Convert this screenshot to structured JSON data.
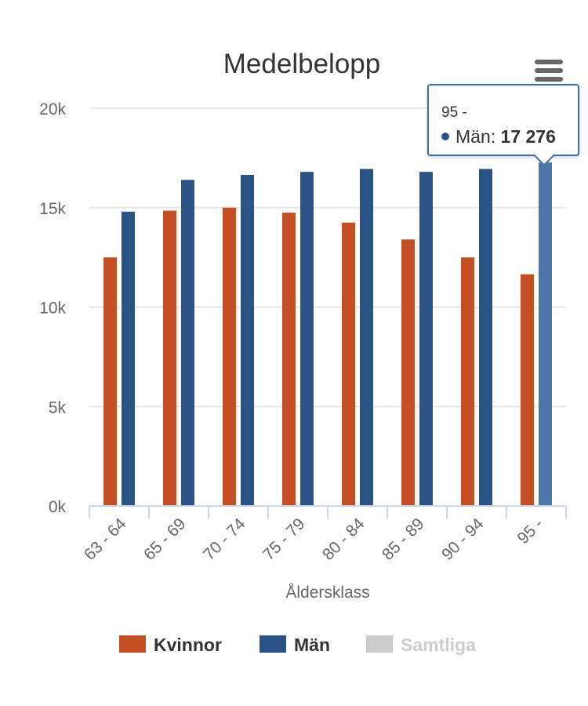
{
  "chart_data": {
    "type": "bar",
    "title": "Medelbelopp",
    "xlabel": "Åldersklass",
    "ylabel": "",
    "ylim": [
      0,
      20000
    ],
    "ytick_values": [
      0,
      5000,
      10000,
      15000,
      20000
    ],
    "ytick_labels": [
      "0k",
      "5k",
      "10k",
      "15k",
      "20k"
    ],
    "categories": [
      "63 - 64",
      "65 - 69",
      "70 - 74",
      "75 - 79",
      "80 - 84",
      "85 - 89",
      "90 - 94",
      "95 -"
    ],
    "series": [
      {
        "name": "Kvinnor",
        "color": "#c25024",
        "values": [
          12500,
          14850,
          15000,
          14750,
          14250,
          13400,
          12500,
          11650
        ]
      },
      {
        "name": "Män",
        "color": "#2a5485",
        "values": [
          14800,
          16400,
          16650,
          16800,
          16950,
          16800,
          16950,
          17276
        ]
      }
    ],
    "hidden_series": [
      {
        "name": "Samtliga",
        "color": "#cccccc",
        "visible": false
      }
    ],
    "grid": true,
    "legend_position": "bottom-center",
    "highlighted": {
      "series": "Män",
      "category": "95 -",
      "color": "#4a77a8"
    }
  },
  "tooltip": {
    "header": "95 -",
    "series_name": "Män",
    "separator": ": ",
    "value": "17 276",
    "color": "#2a5485"
  },
  "legend": {
    "items": [
      {
        "label": "Kvinnor",
        "color": "#c25024",
        "active": true
      },
      {
        "label": "Män",
        "color": "#2a5485",
        "active": true
      },
      {
        "label": "Samtliga",
        "color": "#cccccc",
        "active": false
      }
    ]
  },
  "menu": {
    "icon": "hamburger-menu-icon"
  }
}
